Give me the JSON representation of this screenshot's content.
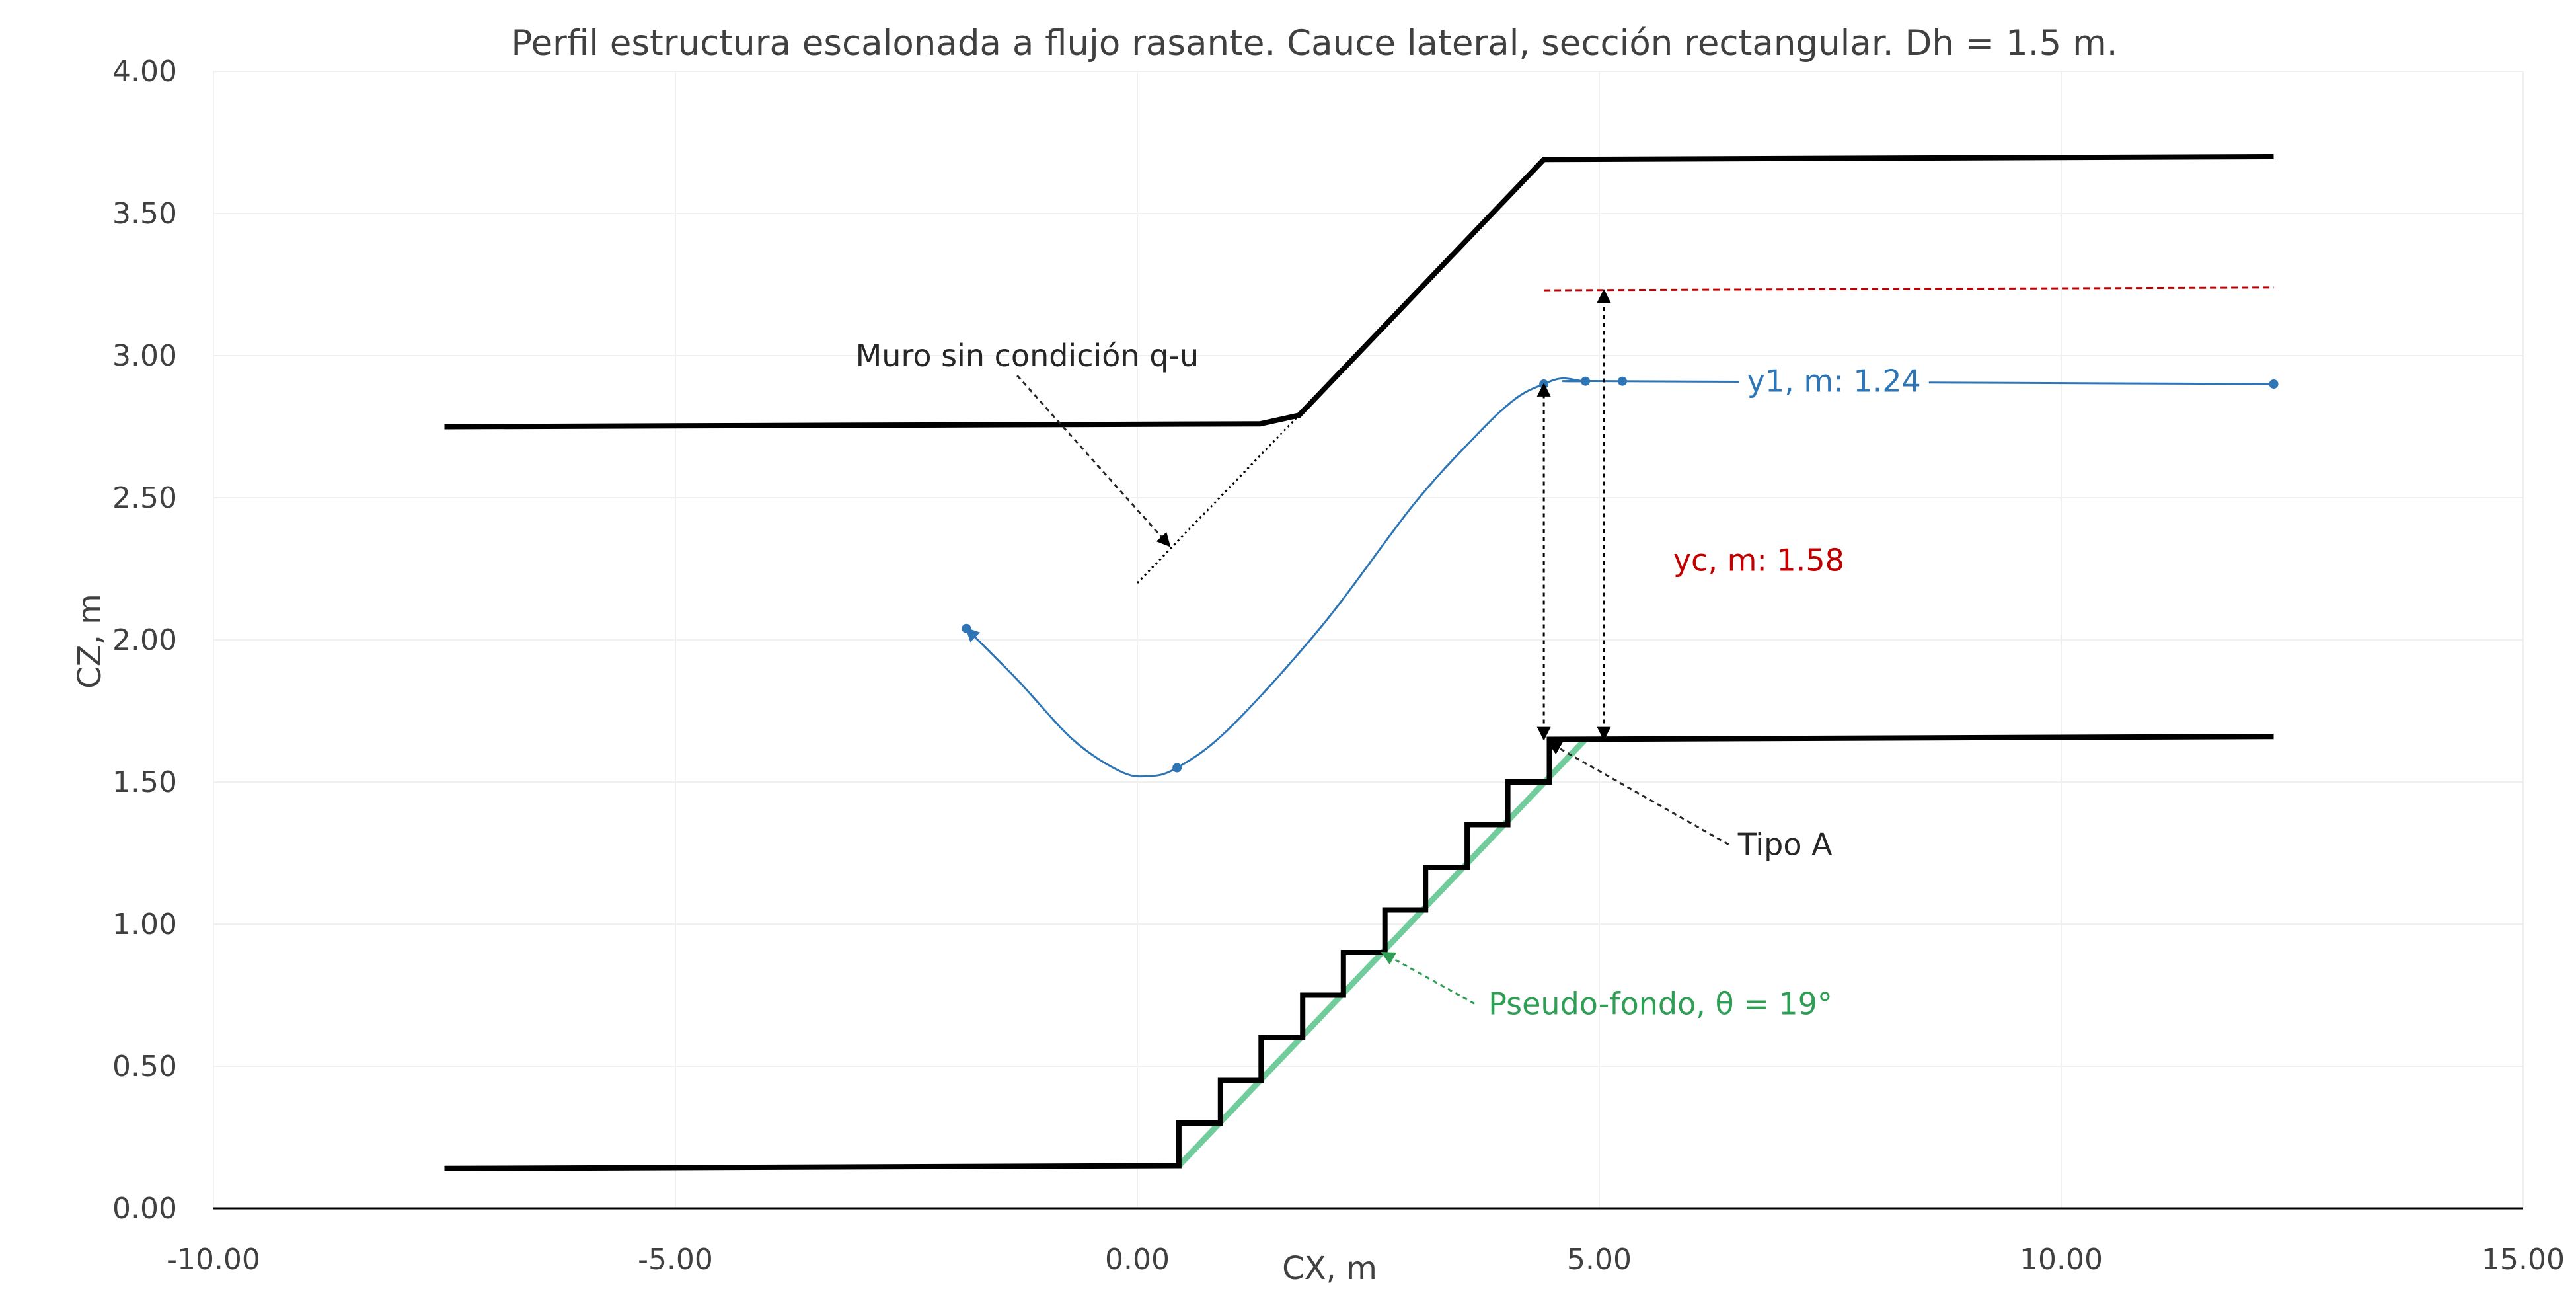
{
  "chart_data": {
    "type": "line",
    "title": "Perfil estructura escalonada a flujo rasante. Cauce lateral, sección rectangular. Dh = 1.5 m.",
    "xlabel": "CX, m",
    "ylabel": "CZ, m",
    "xlim": [
      -10,
      15
    ],
    "ylim": [
      0,
      4
    ],
    "grid": true,
    "x_ticks": [
      "-10.00",
      "-5.00",
      "0.00",
      "5.00",
      "10.00",
      "15.00"
    ],
    "y_ticks": [
      "0.00",
      "0.50",
      "1.00",
      "1.50",
      "2.00",
      "2.50",
      "3.00",
      "3.50",
      "4.00"
    ],
    "colors": {
      "structure": "#000000",
      "water_profile": "#2E75B6",
      "critical_depth": "#C00000",
      "pseudo_bottom": "#70CC9A",
      "pseudo_bottom_text": "#2E9E55",
      "grid": "#F0F0F0",
      "axis": "#000000",
      "text": "#404040"
    },
    "series": [
      {
        "role": "stepped-floor",
        "x": [
          -7.5,
          0.45,
          0.45,
          0.9,
          0.9,
          1.34,
          1.34,
          1.79,
          1.79,
          2.23,
          2.23,
          2.68,
          2.68,
          3.12,
          3.12,
          3.57,
          3.57,
          4.01,
          4.01,
          4.46,
          4.46,
          12.3
        ],
        "y": [
          0.14,
          0.15,
          0.3,
          0.3,
          0.45,
          0.45,
          0.6,
          0.6,
          0.75,
          0.75,
          0.9,
          0.9,
          1.05,
          1.05,
          1.2,
          1.2,
          1.35,
          1.35,
          1.5,
          1.5,
          1.65,
          1.66
        ]
      },
      {
        "role": "side-wall",
        "x": [
          -7.5,
          1.33,
          1.75,
          4.4,
          12.3
        ],
        "y": [
          2.75,
          2.76,
          2.79,
          3.69,
          3.7
        ]
      },
      {
        "role": "pseudo-bottom",
        "x": [
          0.45,
          4.85
        ],
        "y": [
          0.15,
          1.65
        ]
      },
      {
        "role": "water-profile",
        "x": [
          -1.85,
          -1.3,
          -0.7,
          -0.2,
          0.1,
          0.43,
          1.0,
          2.0,
          3.0,
          3.7,
          4.1,
          4.4,
          4.6,
          4.85,
          5.25,
          12.3
        ],
        "y": [
          2.04,
          1.86,
          1.65,
          1.54,
          1.52,
          1.55,
          1.69,
          2.05,
          2.48,
          2.73,
          2.85,
          2.9,
          2.92,
          2.91,
          2.91,
          2.9
        ],
        "markers": [
          {
            "x": -1.85,
            "y": 2.04
          },
          {
            "x": 0.43,
            "y": 1.55
          },
          {
            "x": 4.4,
            "y": 2.9
          },
          {
            "x": 4.85,
            "y": 2.91
          },
          {
            "x": 5.25,
            "y": 2.91
          },
          {
            "x": 12.3,
            "y": 2.9
          }
        ]
      },
      {
        "role": "critical-depth-level",
        "x": [
          4.4,
          12.3
        ],
        "y": [
          3.23,
          3.24
        ]
      },
      {
        "role": "wall-guide-line",
        "x": [
          0.0,
          1.75
        ],
        "y": [
          2.2,
          2.79
        ]
      }
    ],
    "dimension_arrows": [
      {
        "name": "y1-arrow",
        "x": 4.4,
        "y": [
          1.65,
          2.9
        ]
      },
      {
        "name": "yc-arrow",
        "x": 5.05,
        "y": [
          1.65,
          3.23
        ]
      }
    ],
    "annotations": [
      {
        "key": "muro",
        "text": "Muro sin condición q-u",
        "x": -3.05,
        "y": 3.0,
        "anchor": "start",
        "color": "black",
        "pointer": {
          "x1": -1.3,
          "y1": 2.93,
          "x2": 0.35,
          "y2": 2.33
        }
      },
      {
        "key": "y1",
        "text": "y1, m: 1.24",
        "x": 6.6,
        "y": 2.91,
        "anchor": "start",
        "color": "blue"
      },
      {
        "key": "yc",
        "text": "yc, m: 1.58",
        "x": 5.8,
        "y": 2.28,
        "anchor": "start",
        "color": "red"
      },
      {
        "key": "tipo_a",
        "text": "Tipo A",
        "x": 6.5,
        "y": 1.28,
        "anchor": "start",
        "color": "black",
        "pointer": {
          "x1": 6.4,
          "y1": 1.28,
          "x2": 4.45,
          "y2": 1.64
        }
      },
      {
        "key": "pseudo_fondo",
        "text": "Pseudo-fondo, θ = 19°",
        "x": 3.8,
        "y": 0.72,
        "anchor": "start",
        "color": "green",
        "pointer": {
          "x1": 3.65,
          "y1": 0.72,
          "x2": 2.65,
          "y2": 0.9
        }
      }
    ]
  }
}
